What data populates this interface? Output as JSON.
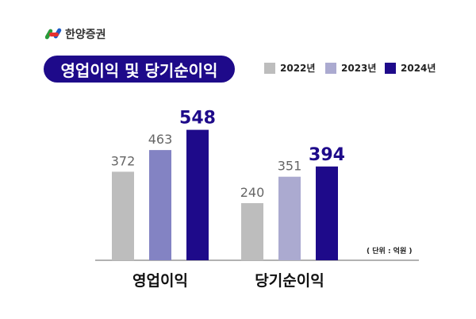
{
  "brand": "한양증권",
  "chart_data": {
    "type": "bar",
    "title": "영업이익 및 당기순이익",
    "categories": [
      "영업이익",
      "당기순이익"
    ],
    "series": [
      {
        "name": "2022년",
        "values": [
          372,
          240
        ],
        "colors": [
          "#bdbdbd",
          "#bdbdbd"
        ],
        "label_color": "#666666"
      },
      {
        "name": "2023년",
        "values": [
          463,
          351
        ],
        "colors": [
          "#8383c3",
          "#abaad0"
        ],
        "label_color": "#666666"
      },
      {
        "name": "2024년",
        "values": [
          548,
          394
        ],
        "colors": [
          "#1e0a8a",
          "#1e0a8a"
        ],
        "label_color": "#1e0a8a"
      }
    ],
    "legend_colors": [
      "#bdbdbd",
      "#abaad0",
      "#1e0a8a"
    ],
    "unit": "( 단위 : 억원 )",
    "legend_placement": "top-right",
    "ylim": [
      0,
      600
    ]
  }
}
